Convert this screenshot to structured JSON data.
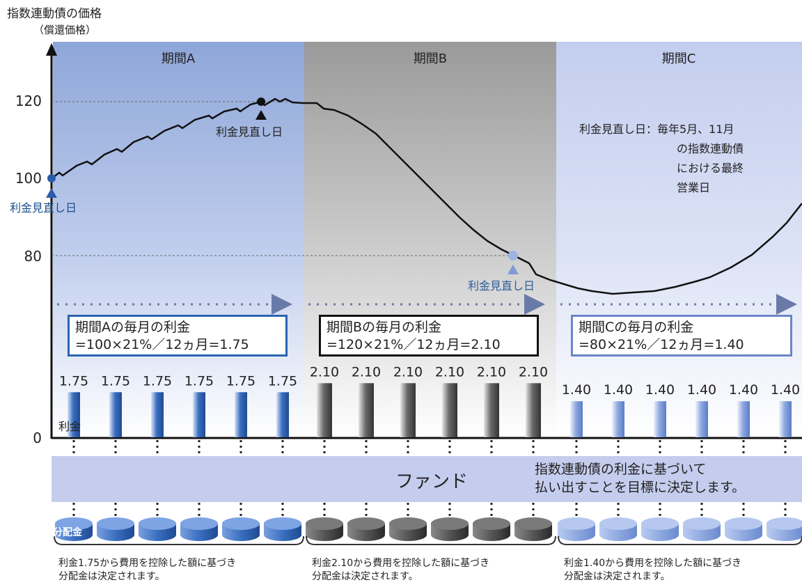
{
  "axis": {
    "title": "指数連動債の価格",
    "subtitle": "（償還価格）",
    "ticks": [
      "120",
      "100",
      "80",
      "0"
    ]
  },
  "periods": [
    {
      "name": "期間A",
      "formula_title": "期間Aの毎月の利金",
      "formula": "=100×21%／12ヵ月=1.75",
      "coupon_value": "1.75",
      "note_line1": "利金1.75から費用を控除した額に基づき",
      "note_line2": "分配金は決定されます。"
    },
    {
      "name": "期間B",
      "formula_title": "期間Bの毎月の利金",
      "formula": "=120×21%／12ヵ月=2.10",
      "coupon_value": "2.10",
      "note_line1": "利金2.10から費用を控除した額に基づき",
      "note_line2": "分配金は決定されます。"
    },
    {
      "name": "期間C",
      "formula_title": "期間Cの毎月の利金",
      "formula": "=80×21%／12ヵ月=1.40",
      "coupon_value": "1.40",
      "note_line1": "利金1.40から費用を控除した額に基づき",
      "note_line2": "分配金は決定されます。"
    }
  ],
  "review_point_label": "利金見直し日",
  "review_note": {
    "line1": "利金見直し日：毎年5月、11月",
    "line2": "の指数連動債",
    "line3": "における最終",
    "line4": "営業日"
  },
  "coupon_label": "利金",
  "fund": {
    "label": "ファンド",
    "message_line1": "指数連動債の利金に基づいて",
    "message_line2": "払い出すことを目標に決定します。"
  },
  "distribution_label": "分配金",
  "chart_data": {
    "type": "line",
    "ylabel": "指数連動債の価格（償還価格）",
    "y_ticks": [
      120,
      100,
      80,
      0
    ],
    "review_prices": [
      100,
      120,
      80
    ],
    "coupons": {
      "period_A": 1.75,
      "period_B": 2.1,
      "period_C": 1.4
    },
    "coupons_per_period": 6
  },
  "colors": {
    "period_a_bg": "#8ea6d8",
    "period_b_bg": "#9c9c9c",
    "period_c_bg": "#c3cdee",
    "bar_a": "#3a6fc0",
    "bar_b": "#666666",
    "bar_c": "#8fa9e0",
    "fund_band": "#c5cdee"
  }
}
